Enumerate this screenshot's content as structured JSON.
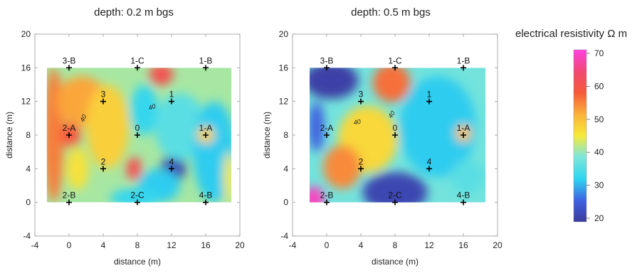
{
  "chart_data": [
    {
      "type": "heatmap",
      "title": "depth: 0.2 m bgs",
      "xlabel": "distance (m)",
      "ylabel": "distance (m)",
      "xlim": [
        -4,
        20
      ],
      "ylim": [
        -4,
        20
      ],
      "xticks": [
        "-4",
        "0",
        "4",
        "8",
        "12",
        "16",
        "20"
      ],
      "yticks": [
        "-4",
        "0",
        "4",
        "8",
        "12",
        "16",
        "20"
      ],
      "data_extent": {
        "x": [
          -2.6,
          19.0
        ],
        "y": [
          0,
          16
        ]
      },
      "contour_labels": [
        "40",
        "40"
      ],
      "points": [
        {
          "label": "3-B",
          "x": 0,
          "y": 16
        },
        {
          "label": "1-C",
          "x": 8,
          "y": 16
        },
        {
          "label": "1-B",
          "x": 16,
          "y": 16
        },
        {
          "label": "3",
          "x": 4,
          "y": 12
        },
        {
          "label": "1",
          "x": 12,
          "y": 12
        },
        {
          "label": "2-A",
          "x": 0,
          "y": 8
        },
        {
          "label": "0",
          "x": 8,
          "y": 8
        },
        {
          "label": "1-A",
          "x": 16,
          "y": 8
        },
        {
          "label": "2",
          "x": 4,
          "y": 4
        },
        {
          "label": "4",
          "x": 12,
          "y": 4
        },
        {
          "label": "2-B",
          "x": 0,
          "y": 0
        },
        {
          "label": "2-C",
          "x": 8,
          "y": 0
        },
        {
          "label": "4-B",
          "x": 16,
          "y": 0
        }
      ],
      "blobs": [
        {
          "x": -1.8,
          "y": 8,
          "rx": 1.2,
          "ry": 8,
          "v": 55
        },
        {
          "x": 1.5,
          "y": 12,
          "rx": 3,
          "ry": 3,
          "v": 52
        },
        {
          "x": 0.2,
          "y": 8,
          "rx": 1.2,
          "ry": 1.4,
          "v": 58
        },
        {
          "x": 4.5,
          "y": 9,
          "rx": 2.5,
          "ry": 5,
          "v": 48
        },
        {
          "x": 7.6,
          "y": 4,
          "rx": 0.9,
          "ry": 1.4,
          "v": 60
        },
        {
          "x": 10.8,
          "y": 15.2,
          "rx": 1.4,
          "ry": 1.3,
          "v": 60
        },
        {
          "x": 8.8,
          "y": 11,
          "rx": 1.6,
          "ry": 3,
          "v": 33
        },
        {
          "x": 12.2,
          "y": 4,
          "rx": 1.5,
          "ry": 1.6,
          "v": 22
        },
        {
          "x": 10.5,
          "y": 2,
          "rx": 2.5,
          "ry": 2,
          "v": 32
        },
        {
          "x": 13,
          "y": 9,
          "rx": 3,
          "ry": 4,
          "v": 36
        },
        {
          "x": 17,
          "y": 6,
          "rx": 2.5,
          "ry": 6,
          "v": 32
        },
        {
          "x": 18.7,
          "y": 3,
          "rx": 0.6,
          "ry": 3,
          "v": 45
        },
        {
          "x": 16,
          "y": 8,
          "rx": 1,
          "ry": 1,
          "v": 48
        },
        {
          "x": 7.8,
          "y": 0.5,
          "rx": 3,
          "ry": 1.2,
          "v": 33
        },
        {
          "x": 1,
          "y": 4,
          "rx": 1.3,
          "ry": 2.5,
          "v": 46
        }
      ],
      "base_value": 41
    },
    {
      "type": "heatmap",
      "title": "depth: 0.5 m bgs",
      "xlabel": "distance (m)",
      "ylabel": "distance (m)",
      "xlim": [
        -4,
        20
      ],
      "ylim": [
        -4,
        20
      ],
      "xticks": [
        "-4",
        "0",
        "4",
        "8",
        "12",
        "16",
        "20"
      ],
      "yticks": [
        "-4",
        "0",
        "4",
        "8",
        "12",
        "16",
        "20"
      ],
      "data_extent": {
        "x": [
          -2.0,
          18.6
        ],
        "y": [
          0,
          16
        ]
      },
      "contour_labels": [
        "40",
        "40"
      ],
      "points": [
        {
          "label": "3-B",
          "x": 0,
          "y": 16
        },
        {
          "label": "1-C",
          "x": 8,
          "y": 16
        },
        {
          "label": "1-B",
          "x": 16,
          "y": 16
        },
        {
          "label": "3",
          "x": 4,
          "y": 12
        },
        {
          "label": "1",
          "x": 12,
          "y": 12
        },
        {
          "label": "2-A",
          "x": 0,
          "y": 8
        },
        {
          "label": "0",
          "x": 8,
          "y": 8
        },
        {
          "label": "1-A",
          "x": 16,
          "y": 8
        },
        {
          "label": "2",
          "x": 4,
          "y": 4
        },
        {
          "label": "4",
          "x": 12,
          "y": 4
        },
        {
          "label": "2-B",
          "x": 0,
          "y": 0
        },
        {
          "label": "2-C",
          "x": 8,
          "y": 0
        },
        {
          "label": "4-B",
          "x": 16,
          "y": 0
        }
      ],
      "blobs": [
        {
          "x": 0.5,
          "y": 14.5,
          "rx": 3.2,
          "ry": 2.2,
          "v": 21
        },
        {
          "x": 7.6,
          "y": 14.2,
          "rx": 2.2,
          "ry": 2.3,
          "v": 56
        },
        {
          "x": 4.8,
          "y": 7.5,
          "rx": 3.5,
          "ry": 4,
          "v": 47
        },
        {
          "x": 1.8,
          "y": 4.2,
          "rx": 2.2,
          "ry": 2.6,
          "v": 54
        },
        {
          "x": -1.5,
          "y": 0.4,
          "rx": 1.2,
          "ry": 1.5,
          "v": 68
        },
        {
          "x": 8,
          "y": 1.2,
          "rx": 3.8,
          "ry": 2.4,
          "v": 22
        },
        {
          "x": 13,
          "y": 9,
          "rx": 4.5,
          "ry": 6,
          "v": 32
        },
        {
          "x": 16,
          "y": 8.2,
          "rx": 0.9,
          "ry": 1,
          "v": 50
        },
        {
          "x": -1.2,
          "y": 9,
          "rx": 0.9,
          "ry": 3,
          "v": 26
        },
        {
          "x": 16.5,
          "y": 3,
          "rx": 2,
          "ry": 2,
          "v": 36
        }
      ],
      "base_value": 38
    }
  ],
  "colorbar": {
    "title": "electrical resistivity Ω m",
    "ticks": [
      "20",
      "30",
      "40",
      "50",
      "60",
      "70"
    ],
    "range": [
      20,
      70
    ]
  }
}
